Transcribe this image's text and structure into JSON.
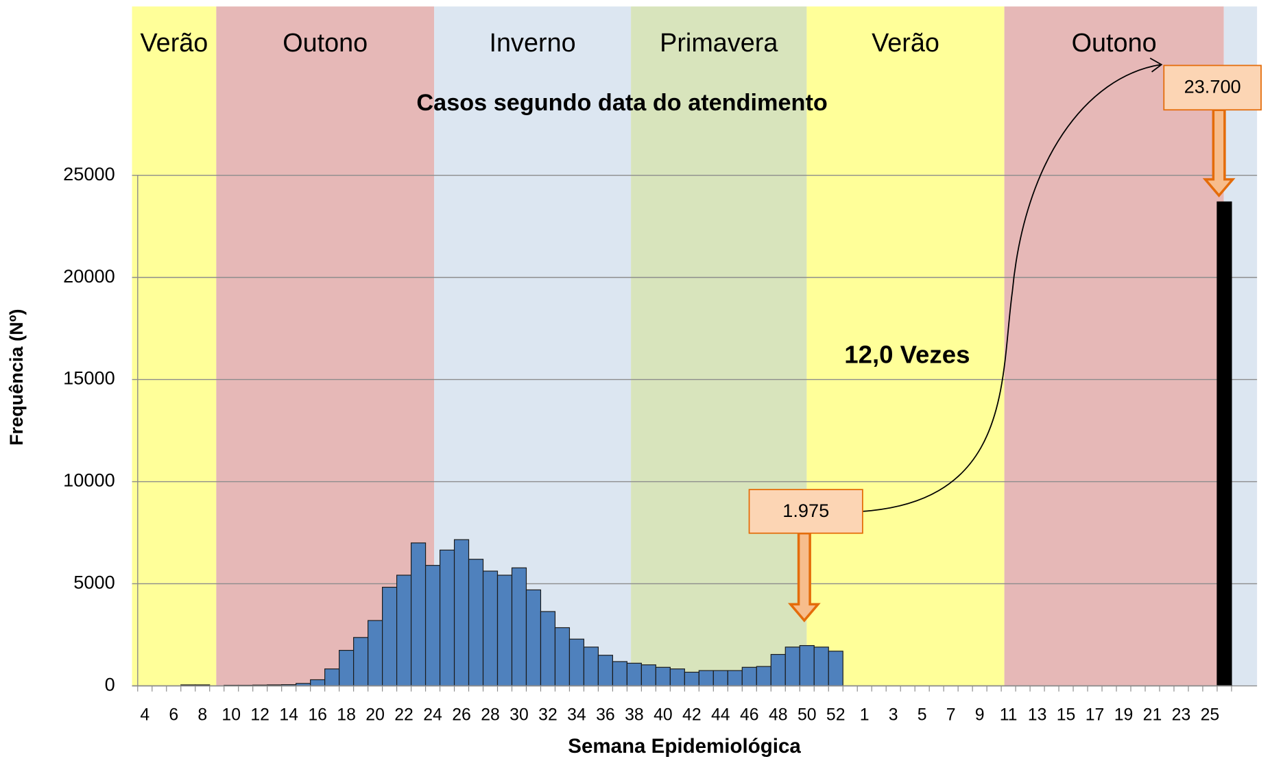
{
  "chart_data": {
    "type": "bar",
    "title": "Casos segundo data do atendimento",
    "xlabel": "Semana Epidemiológica",
    "ylabel": "Frequência (Nº)",
    "seasons": [
      {
        "name": "Verão",
        "color": "#ffff99"
      },
      {
        "name": "Outono",
        "color": "#e6b8b7"
      },
      {
        "name": "Inverno",
        "color": "#dce6f1"
      },
      {
        "name": "Primavera",
        "color": "#d8e4bc"
      },
      {
        "name": "Verão",
        "color": "#ffff99"
      },
      {
        "name": "Outono",
        "color": "#e6b8b7"
      }
    ],
    "annotations": [
      "1.975",
      "23.700",
      "12,0 Vezes"
    ],
    "categories": [
      4,
      null,
      6,
      null,
      8,
      null,
      10,
      null,
      12,
      null,
      14,
      null,
      16,
      null,
      18,
      null,
      20,
      null,
      22,
      null,
      24,
      null,
      26,
      null,
      28,
      null,
      30,
      null,
      32,
      null,
      34,
      null,
      36,
      null,
      38,
      null,
      40,
      null,
      42,
      null,
      44,
      null,
      46,
      null,
      48,
      null,
      50,
      null,
      52,
      null,
      1,
      null,
      3,
      null,
      5,
      null,
      7,
      null,
      9,
      null,
      11,
      null,
      13,
      null,
      15,
      null,
      17,
      null,
      19,
      null,
      21,
      null,
      23,
      null,
      25,
      null
    ],
    "series": [
      {
        "color": "#4f81bd",
        "values": [
          null,
          null,
          null,
          50,
          50,
          null,
          30,
          30,
          40,
          50,
          60,
          120,
          300,
          830,
          1740,
          2370,
          3200,
          4830,
          5420,
          7000,
          5900,
          6650,
          7160,
          6200,
          5620,
          5420,
          5780,
          4700,
          3640,
          2850,
          2290,
          1900,
          1500,
          1190,
          1110,
          1030,
          910,
          830,
          670,
          750,
          750,
          750,
          910,
          950,
          1540,
          1900,
          1975,
          1900,
          1700,
          null,
          null,
          null,
          null,
          null,
          null,
          null,
          null,
          null,
          null,
          null,
          null,
          null,
          null,
          null,
          null,
          null,
          null,
          null,
          null,
          null,
          null,
          null,
          null,
          null,
          null,
          null
        ]
      },
      {
        "color": "#000000",
        "values": [
          null,
          null,
          null,
          null,
          null,
          null,
          null,
          null,
          null,
          null,
          null,
          null,
          null,
          null,
          null,
          null,
          null,
          null,
          null,
          null,
          null,
          null,
          null,
          null,
          null,
          null,
          null,
          null,
          null,
          null,
          null,
          null,
          null,
          null,
          null,
          null,
          null,
          null,
          null,
          null,
          null,
          null,
          null,
          null,
          null,
          null,
          null,
          null,
          null,
          null,
          null,
          null,
          null,
          null,
          null,
          null,
          null,
          null,
          null,
          null,
          null,
          null,
          null,
          null,
          null,
          null,
          null,
          null,
          null,
          null,
          null,
          null,
          null,
          null,
          null,
          23700
        ]
      }
    ],
    "ylim": [
      0,
      25000
    ],
    "yticks": [
      0,
      5000,
      10000,
      15000,
      20000,
      25000
    ],
    "grid": true
  }
}
